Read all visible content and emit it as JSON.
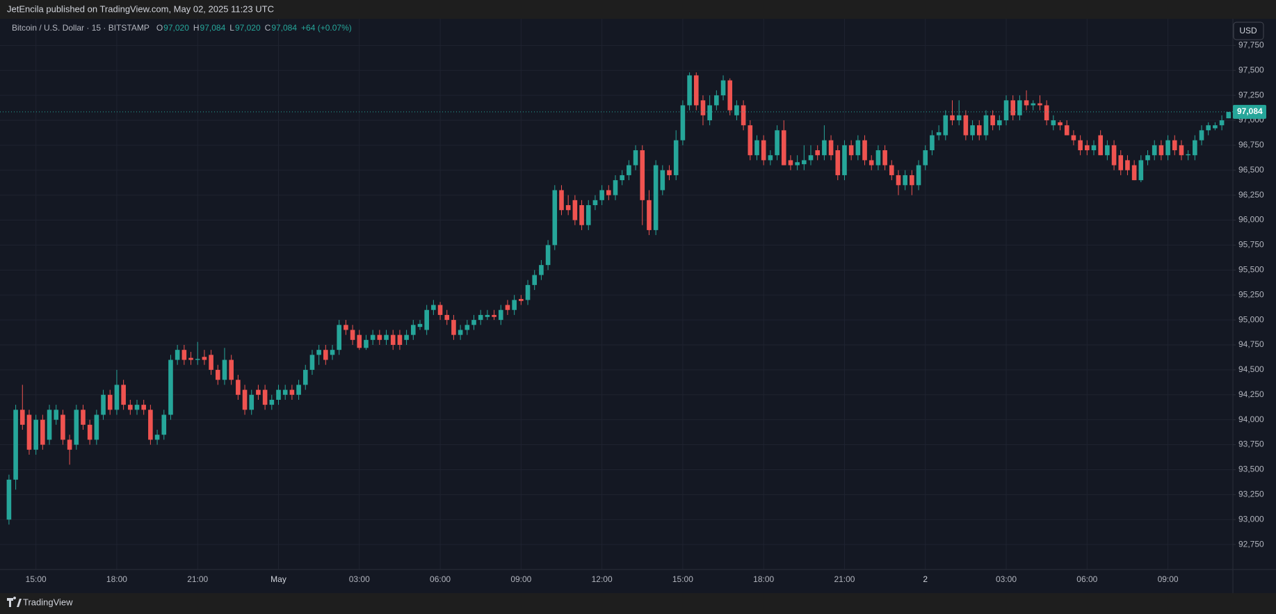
{
  "header": {
    "text": "JetEncila published on TradingView.com, May 02, 2025 11:23 UTC"
  },
  "footer": {
    "brand": "TradingView"
  },
  "chart_data": {
    "type": "candlestick",
    "symbol": "Bitcoin / U.S. Dollar · 15 · BITSTAMP",
    "legend": [
      {
        "key": "O",
        "value": {
          "value": 97020,
          "label": "97,020"
        }
      },
      {
        "key": "H",
        "value": {
          "value": 97084,
          "label": "97,084"
        }
      },
      {
        "key": "L",
        "value": {
          "value": 97020,
          "label": "97,020"
        }
      },
      {
        "key": "C",
        "value": {
          "value": 97084,
          "label": "97,084"
        }
      }
    ],
    "change": "+64 (+0.07%)",
    "currency": "USD",
    "last_price": {
      "value": 97084,
      "label": "97,084"
    },
    "up_color": "#26a69a",
    "down_color": "#ef5350",
    "grid": true,
    "ylim": [
      92500,
      98010
    ],
    "yticks": [
      {
        "value": 92750,
        "label": "92,750"
      },
      {
        "value": 93000,
        "label": "93,000"
      },
      {
        "value": 93250,
        "label": "93,250"
      },
      {
        "value": 93500,
        "label": "93,500"
      },
      {
        "value": 93750,
        "label": "93,750"
      },
      {
        "value": 94000,
        "label": "94,000"
      },
      {
        "value": 94250,
        "label": "94,250"
      },
      {
        "value": 94500,
        "label": "94,500"
      },
      {
        "value": 94750,
        "label": "94,750"
      },
      {
        "value": 95000,
        "label": "95,000"
      },
      {
        "value": 95250,
        "label": "95,250"
      },
      {
        "value": 95500,
        "label": "95,500"
      },
      {
        "value": 95750,
        "label": "95,750"
      },
      {
        "value": 96000,
        "label": "96,000"
      },
      {
        "value": 96250,
        "label": "96,250"
      },
      {
        "value": 96500,
        "label": "96,500"
      },
      {
        "value": 96750,
        "label": "96,750"
      },
      {
        "value": 97000,
        "label": "97,000"
      },
      {
        "value": 97250,
        "label": "97,250"
      },
      {
        "value": 97500,
        "label": "97,500"
      },
      {
        "value": 97750,
        "label": "97,750"
      }
    ],
    "categories": [
      null,
      null,
      null,
      null,
      "15:00",
      null,
      null,
      null,
      null,
      null,
      null,
      null,
      null,
      null,
      null,
      null,
      "18:00",
      null,
      null,
      null,
      null,
      null,
      null,
      null,
      null,
      null,
      null,
      null,
      "21:00",
      null,
      null,
      null,
      null,
      null,
      null,
      null,
      null,
      null,
      null,
      null,
      "May",
      null,
      null,
      null,
      null,
      null,
      null,
      null,
      null,
      null,
      null,
      null,
      "03:00",
      null,
      null,
      null,
      null,
      null,
      null,
      null,
      null,
      null,
      null,
      null,
      "06:00",
      null,
      null,
      null,
      null,
      null,
      null,
      null,
      null,
      null,
      null,
      null,
      "09:00",
      null,
      null,
      null,
      null,
      null,
      null,
      null,
      null,
      null,
      null,
      null,
      "12:00",
      null,
      null,
      null,
      null,
      null,
      null,
      null,
      null,
      null,
      null,
      null,
      "15:00",
      null,
      null,
      null,
      null,
      null,
      null,
      null,
      null,
      null,
      null,
      null,
      "18:00",
      null,
      null,
      null,
      null,
      null,
      null,
      null,
      null,
      null,
      null,
      null,
      "21:00",
      null,
      null,
      null,
      null,
      null,
      null,
      null,
      null,
      null,
      null,
      null,
      "2",
      null,
      null,
      null,
      null,
      null,
      null,
      null,
      null,
      null,
      null,
      null,
      "03:00",
      null,
      null,
      null,
      null,
      null,
      null,
      null,
      null,
      null,
      null,
      null,
      "06:00",
      null,
      null,
      null,
      null,
      null,
      null,
      null,
      null,
      null,
      null,
      null,
      "09:00",
      null,
      null,
      null,
      null,
      null,
      null,
      null,
      null,
      null
    ],
    "ohlc": [
      [
        93000,
        93450,
        92950,
        93400
      ],
      [
        93400,
        94150,
        93300,
        94100
      ],
      [
        94100,
        94350,
        93900,
        93950
      ],
      [
        94050,
        94100,
        93650,
        93700
      ],
      [
        93700,
        94050,
        93650,
        94000
      ],
      [
        94000,
        94050,
        93700,
        93750
      ],
      [
        93800,
        94150,
        93750,
        94100
      ],
      [
        94000,
        94150,
        93950,
        94100
      ],
      [
        94050,
        94100,
        93750,
        93800
      ],
      [
        93800,
        93850,
        93550,
        93700
      ],
      [
        93750,
        94150,
        93700,
        94100
      ],
      [
        94100,
        94150,
        93900,
        93950
      ],
      [
        93950,
        94000,
        93750,
        93800
      ],
      [
        93800,
        94100,
        93750,
        94050
      ],
      [
        94050,
        94300,
        94000,
        94250
      ],
      [
        94250,
        94300,
        94050,
        94100
      ],
      [
        94100,
        94500,
        94050,
        94350
      ],
      [
        94350,
        94400,
        94100,
        94150
      ],
      [
        94150,
        94200,
        94050,
        94100
      ],
      [
        94100,
        94200,
        94050,
        94150
      ],
      [
        94150,
        94200,
        94050,
        94100
      ],
      [
        94100,
        94150,
        93750,
        93800
      ],
      [
        93800,
        93900,
        93750,
        93850
      ],
      [
        93850,
        94100,
        93800,
        94050
      ],
      [
        94050,
        94650,
        94000,
        94600
      ],
      [
        94600,
        94750,
        94550,
        94700
      ],
      [
        94700,
        94750,
        94550,
        94600
      ],
      [
        94620,
        94680,
        94550,
        94600
      ],
      [
        94600,
        94780,
        94550,
        94610
      ],
      [
        94630,
        94700,
        94550,
        94600
      ],
      [
        94650,
        94700,
        94450,
        94500
      ],
      [
        94500,
        94550,
        94350,
        94400
      ],
      [
        94400,
        94720,
        94350,
        94600
      ],
      [
        94600,
        94650,
        94350,
        94400
      ],
      [
        94400,
        94450,
        94200,
        94250
      ],
      [
        94300,
        94350,
        94050,
        94100
      ],
      [
        94100,
        94300,
        94050,
        94250
      ],
      [
        94300,
        94350,
        94200,
        94250
      ],
      [
        94300,
        94350,
        94100,
        94150
      ],
      [
        94150,
        94250,
        94100,
        94200
      ],
      [
        94200,
        94350,
        94150,
        94300
      ],
      [
        94250,
        94350,
        94200,
        94300
      ],
      [
        94300,
        94350,
        94200,
        94250
      ],
      [
        94250,
        94400,
        94200,
        94350
      ],
      [
        94350,
        94550,
        94300,
        94500
      ],
      [
        94500,
        94700,
        94450,
        94650
      ],
      [
        94650,
        94750,
        94550,
        94700
      ],
      [
        94700,
        94750,
        94550,
        94600
      ],
      [
        94650,
        94750,
        94600,
        94700
      ],
      [
        94700,
        95000,
        94650,
        94950
      ],
      [
        94950,
        95000,
        94850,
        94900
      ],
      [
        94900,
        94950,
        94750,
        94800
      ],
      [
        94850,
        94900,
        94700,
        94720
      ],
      [
        94720,
        94850,
        94700,
        94800
      ],
      [
        94800,
        94900,
        94750,
        94850
      ],
      [
        94850,
        94900,
        94750,
        94800
      ],
      [
        94800,
        94900,
        94750,
        94850
      ],
      [
        94850,
        94900,
        94700,
        94750
      ],
      [
        94850,
        94900,
        94700,
        94750
      ],
      [
        94800,
        94900,
        94750,
        94850
      ],
      [
        94850,
        95000,
        94800,
        94950
      ],
      [
        94930,
        95000,
        94900,
        94960
      ],
      [
        94900,
        95150,
        94850,
        95100
      ],
      [
        95100,
        95200,
        95050,
        95150
      ],
      [
        95150,
        95180,
        95000,
        95050
      ],
      [
        95050,
        95100,
        94950,
        95000
      ],
      [
        95000,
        95050,
        94800,
        94850
      ],
      [
        94850,
        94950,
        94800,
        94900
      ],
      [
        94900,
        95000,
        94850,
        94950
      ],
      [
        94950,
        95050,
        94900,
        95000
      ],
      [
        95000,
        95100,
        94950,
        95050
      ],
      [
        95030,
        95100,
        95000,
        95050
      ],
      [
        95050,
        95100,
        95000,
        95030
      ],
      [
        95000,
        95150,
        94950,
        95100
      ],
      [
        95150,
        95200,
        95050,
        95100
      ],
      [
        95100,
        95250,
        95050,
        95200
      ],
      [
        95210,
        95250,
        95150,
        95190
      ],
      [
        95200,
        95400,
        95150,
        95350
      ],
      [
        95350,
        95500,
        95300,
        95450
      ],
      [
        95450,
        95600,
        95400,
        95550
      ],
      [
        95550,
        95800,
        95500,
        95750
      ],
      [
        95750,
        96350,
        95700,
        96300
      ],
      [
        96300,
        96350,
        96050,
        96100
      ],
      [
        96150,
        96250,
        96050,
        96100
      ],
      [
        96200,
        96250,
        95950,
        96000
      ],
      [
        96150,
        96200,
        95900,
        95950
      ],
      [
        95950,
        96200,
        95900,
        96150
      ],
      [
        96150,
        96250,
        96100,
        96200
      ],
      [
        96200,
        96350,
        96150,
        96300
      ],
      [
        96300,
        96350,
        96200,
        96250
      ],
      [
        96250,
        96450,
        96200,
        96400
      ],
      [
        96400,
        96500,
        96350,
        96450
      ],
      [
        96450,
        96600,
        96400,
        96550
      ],
      [
        96550,
        96750,
        96500,
        96700
      ],
      [
        96700,
        96750,
        95950,
        96200
      ],
      [
        96200,
        96300,
        95850,
        95900
      ],
      [
        95900,
        96600,
        95850,
        96550
      ],
      [
        96300,
        96550,
        96250,
        96500
      ],
      [
        96500,
        96550,
        96400,
        96450
      ],
      [
        96450,
        96900,
        96400,
        96800
      ],
      [
        96800,
        97200,
        96750,
        97150
      ],
      [
        97150,
        97480,
        97100,
        97450
      ],
      [
        97450,
        97480,
        97100,
        97150
      ],
      [
        97200,
        97250,
        96950,
        97050
      ],
      [
        97000,
        97250,
        96950,
        97150
      ],
      [
        97150,
        97300,
        97100,
        97250
      ],
      [
        97250,
        97450,
        97200,
        97400
      ],
      [
        97400,
        97420,
        97050,
        97100
      ],
      [
        97050,
        97200,
        97000,
        97150
      ],
      [
        97150,
        97200,
        96900,
        96950
      ],
      [
        96950,
        97000,
        96600,
        96650
      ],
      [
        96650,
        96850,
        96600,
        96800
      ],
      [
        96800,
        96850,
        96550,
        96600
      ],
      [
        96600,
        96700,
        96550,
        96650
      ],
      [
        96650,
        96950,
        96600,
        96900
      ],
      [
        96900,
        97000,
        96550,
        96550
      ],
      [
        96600,
        96650,
        96500,
        96550
      ],
      [
        96550,
        96650,
        96500,
        96580
      ],
      [
        96560,
        96750,
        96500,
        96600
      ],
      [
        96600,
        96750,
        96550,
        96650
      ],
      [
        96700,
        96750,
        96600,
        96650
      ],
      [
        96650,
        96950,
        96600,
        96800
      ],
      [
        96800,
        96850,
        96600,
        96650
      ],
      [
        96700,
        96750,
        96400,
        96450
      ],
      [
        96450,
        96800,
        96400,
        96750
      ],
      [
        96750,
        96800,
        96600,
        96650
      ],
      [
        96650,
        96850,
        96600,
        96800
      ],
      [
        96800,
        96850,
        96550,
        96600
      ],
      [
        96600,
        96650,
        96500,
        96550
      ],
      [
        96550,
        96750,
        96500,
        96700
      ],
      [
        96700,
        96750,
        96500,
        96550
      ],
      [
        96550,
        96600,
        96400,
        96450
      ],
      [
        96450,
        96500,
        96250,
        96350
      ],
      [
        96350,
        96500,
        96300,
        96450
      ],
      [
        96450,
        96500,
        96250,
        96350
      ],
      [
        96350,
        96600,
        96300,
        96550
      ],
      [
        96550,
        96750,
        96500,
        96700
      ],
      [
        96700,
        96900,
        96650,
        96850
      ],
      [
        96850,
        96950,
        96800,
        96880
      ],
      [
        96850,
        97100,
        96800,
        97050
      ],
      [
        97050,
        97200,
        96950,
        97000
      ],
      [
        97000,
        97200,
        96950,
        97050
      ],
      [
        97050,
        97100,
        96800,
        96850
      ],
      [
        96850,
        97000,
        96800,
        96950
      ],
      [
        96950,
        97000,
        96800,
        96850
      ],
      [
        96850,
        97100,
        96800,
        97050
      ],
      [
        97050,
        97100,
        96900,
        96950
      ],
      [
        96950,
        97050,
        96900,
        97000
      ],
      [
        97000,
        97250,
        96950,
        97200
      ],
      [
        97200,
        97250,
        97000,
        97050
      ],
      [
        97050,
        97250,
        97000,
        97200
      ],
      [
        97200,
        97300,
        97100,
        97150
      ],
      [
        97150,
        97200,
        97100,
        97170
      ],
      [
        97170,
        97250,
        97100,
        97150
      ],
      [
        97150,
        97200,
        96950,
        97000
      ],
      [
        96950,
        97050,
        96900,
        97000
      ],
      [
        96980,
        97000,
        96900,
        96950
      ],
      [
        96950,
        97000,
        96850,
        96850
      ],
      [
        96850,
        96900,
        96750,
        96800
      ],
      [
        96800,
        96850,
        96650,
        96700
      ],
      [
        96750,
        96800,
        96650,
        96700
      ],
      [
        96700,
        96800,
        96650,
        96750
      ],
      [
        96850,
        96900,
        96650,
        96650
      ],
      [
        96650,
        96800,
        96600,
        96750
      ],
      [
        96750,
        96800,
        96500,
        96550
      ],
      [
        96650,
        96700,
        96450,
        96500
      ],
      [
        96600,
        96650,
        96450,
        96500
      ],
      [
        96550,
        96600,
        96400,
        96400
      ],
      [
        96400,
        96650,
        96380,
        96600
      ],
      [
        96600,
        96700,
        96550,
        96650
      ],
      [
        96650,
        96800,
        96600,
        96750
      ],
      [
        96750,
        96800,
        96600,
        96650
      ],
      [
        96650,
        96850,
        96600,
        96800
      ],
      [
        96800,
        96850,
        96650,
        96700
      ],
      [
        96750,
        96800,
        96600,
        96650
      ],
      [
        96650,
        96700,
        96600,
        96660
      ],
      [
        96650,
        96850,
        96600,
        96800
      ],
      [
        96800,
        96950,
        96750,
        96900
      ],
      [
        96900,
        96980,
        96850,
        96950
      ],
      [
        96920,
        96980,
        96900,
        96950
      ],
      [
        96950,
        97050,
        96900,
        97000
      ],
      [
        97020,
        97084,
        97020,
        97084
      ]
    ]
  }
}
